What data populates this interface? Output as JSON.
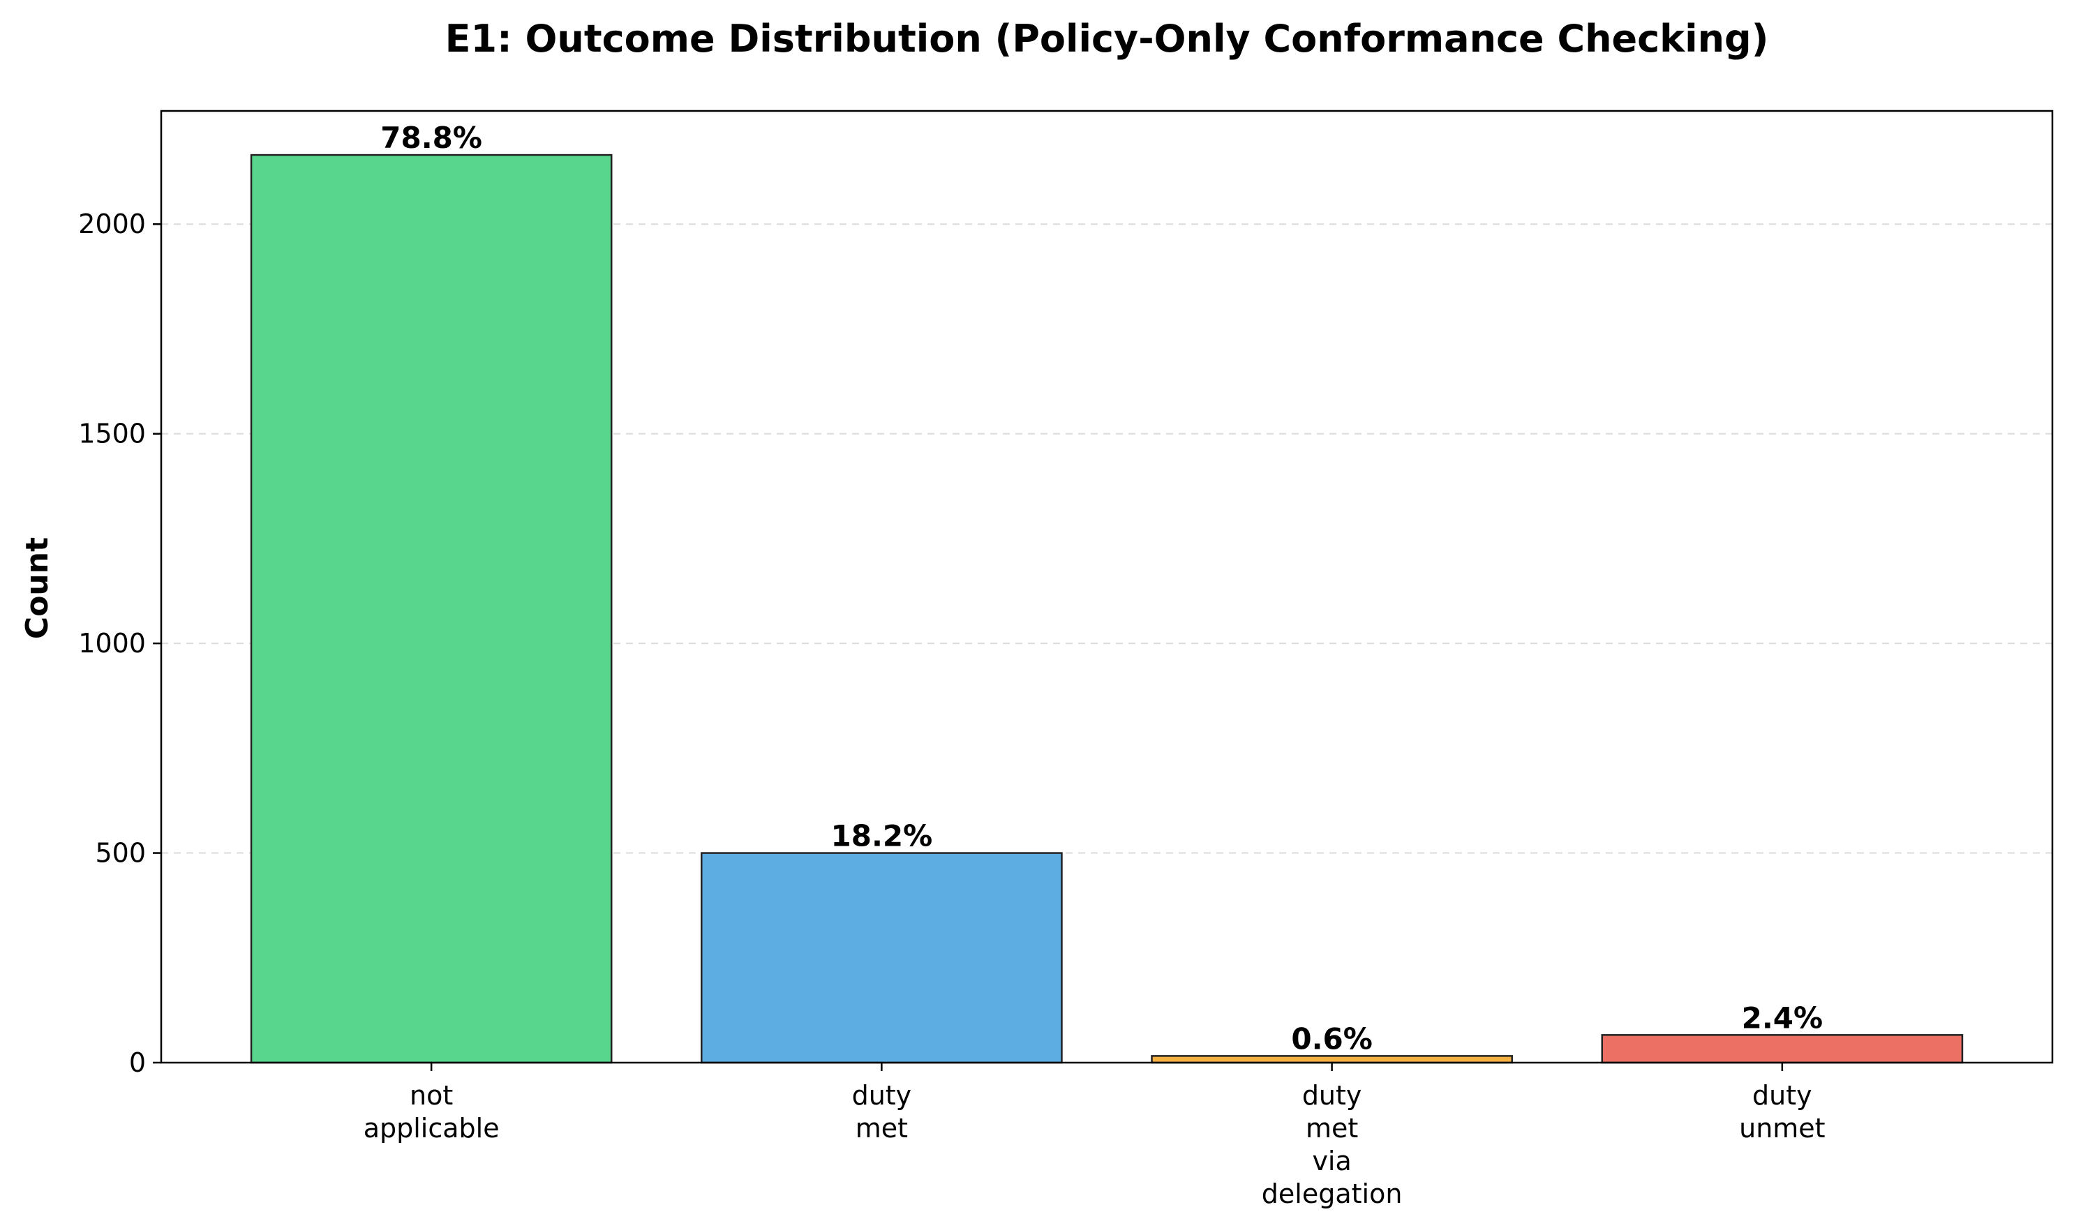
{
  "chart_data": {
    "type": "bar",
    "title": "E1: Outcome Distribution (Policy-Only Conformance Checking)",
    "xlabel": "",
    "ylabel": "Count",
    "ylim": [
      0,
      2270
    ],
    "yticks": [
      0,
      500,
      1000,
      1500,
      2000
    ],
    "grid": "y-dashed",
    "categories": [
      [
        "not",
        "applicable"
      ],
      [
        "duty",
        "met"
      ],
      [
        "duty",
        "met",
        "via",
        "delegation"
      ],
      [
        "duty",
        "unmet"
      ]
    ],
    "values": [
      2165,
      500,
      16,
      66
    ],
    "data_labels": [
      "78.8%",
      "18.2%",
      "0.6%",
      "2.4%"
    ],
    "colors": [
      "#58d68d",
      "#5dade2",
      "#f5b041",
      "#ec7063"
    ]
  }
}
